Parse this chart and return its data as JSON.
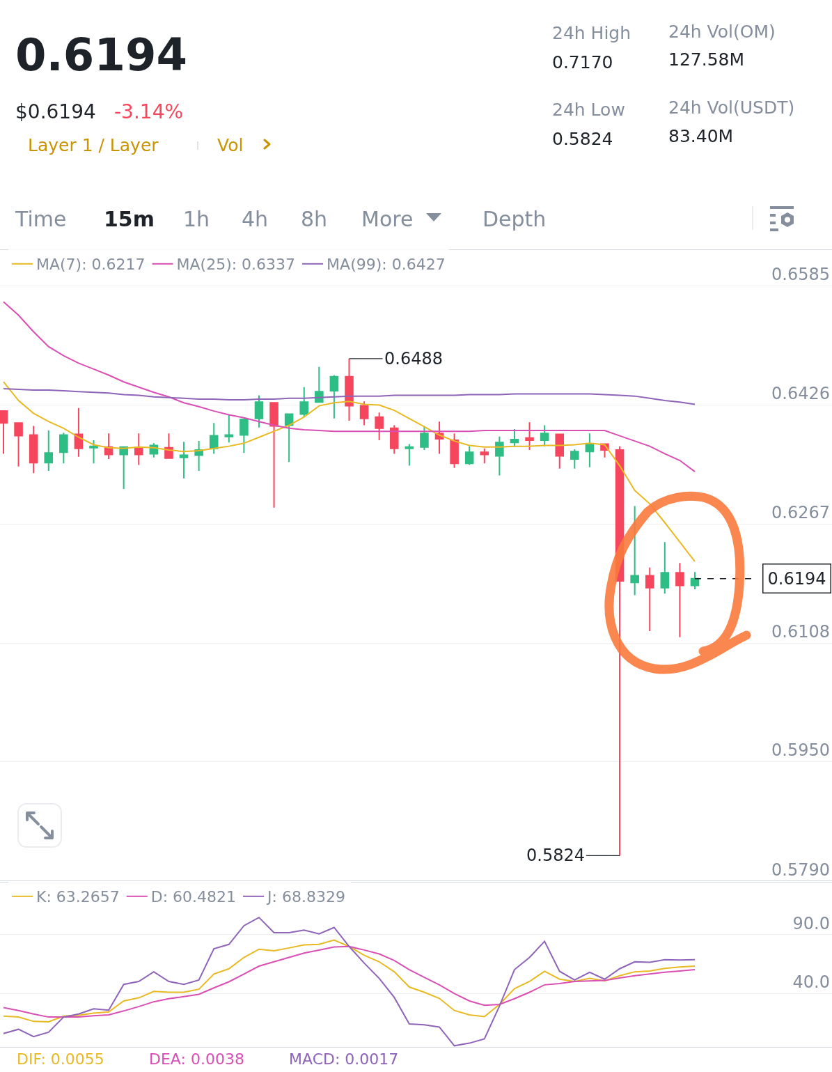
{
  "chart_data": [
    {
      "type": "candlestick",
      "categories": [
        null,
        null,
        null,
        null,
        null,
        null,
        null,
        null,
        null,
        null,
        null,
        null,
        null,
        null,
        null,
        null,
        null,
        null,
        null,
        null,
        null,
        null,
        null,
        null,
        null,
        null,
        null,
        null,
        null,
        null,
        null,
        null,
        null,
        null,
        null,
        null,
        null,
        null,
        null,
        null,
        null,
        null,
        null,
        null,
        null,
        null,
        null
      ],
      "ohlc": [
        [
          0.6418,
          0.6418,
          0.6361,
          0.6402
        ],
        [
          0.6402,
          0.6403,
          0.6344,
          0.6385
        ],
        [
          0.6386,
          0.6398,
          0.6335,
          0.6349
        ],
        [
          0.6349,
          0.6392,
          0.6338,
          0.6362
        ],
        [
          0.6363,
          0.6389,
          0.6348,
          0.6386
        ],
        [
          0.6387,
          0.6422,
          0.6357,
          0.6368
        ],
        [
          0.6369,
          0.6379,
          0.6348,
          0.6371
        ],
        [
          0.637,
          0.6388,
          0.6354,
          0.636
        ],
        [
          0.636,
          0.637,
          0.6314,
          0.637
        ],
        [
          0.6369,
          0.6388,
          0.6346,
          0.636
        ],
        [
          0.6361,
          0.6375,
          0.6356,
          0.6372
        ],
        [
          0.6369,
          0.6388,
          0.6355,
          0.6355
        ],
        [
          0.6356,
          0.6377,
          0.6328,
          0.6359
        ],
        [
          0.6359,
          0.6378,
          0.6338,
          0.6366
        ],
        [
          0.6368,
          0.6402,
          0.6361,
          0.6385
        ],
        [
          0.6384,
          0.6413,
          0.6376,
          0.6386
        ],
        [
          0.6386,
          0.6407,
          0.6362,
          0.6407
        ],
        [
          0.6408,
          0.6439,
          0.6396,
          0.643
        ],
        [
          0.6429,
          0.643,
          0.6289,
          0.6398
        ],
        [
          0.6399,
          0.6414,
          0.635,
          0.6414
        ],
        [
          0.6414,
          0.645,
          0.641,
          0.643
        ],
        [
          0.643,
          0.6477,
          0.643,
          0.6444
        ],
        [
          0.6445,
          0.6466,
          0.6408,
          0.6464
        ],
        [
          0.6464,
          0.6488,
          0.6405,
          0.6425
        ],
        [
          0.6425,
          0.6431,
          0.6399,
          0.6408
        ],
        [
          0.641,
          0.6416,
          0.6379,
          0.6395
        ],
        [
          0.6395,
          0.6399,
          0.6361,
          0.6368
        ],
        [
          0.6368,
          0.6374,
          0.6345,
          0.637
        ],
        [
          0.637,
          0.6398,
          0.6366,
          0.6388
        ],
        [
          0.6388,
          0.6404,
          0.6361,
          0.6381
        ],
        [
          0.6379,
          0.6388,
          0.6342,
          0.6348
        ],
        [
          0.6348,
          0.6371,
          0.6346,
          0.6363
        ],
        [
          0.6363,
          0.6368,
          0.6348,
          0.636
        ],
        [
          0.6358,
          0.6384,
          0.6332,
          0.6376
        ],
        [
          0.6376,
          0.6394,
          0.637,
          0.638
        ],
        [
          0.6382,
          0.6403,
          0.6366,
          0.6379
        ],
        [
          0.6379,
          0.6399,
          0.6371,
          0.6388
        ],
        [
          0.6387,
          0.6387,
          0.6341,
          0.6358
        ],
        [
          0.6354,
          0.6367,
          0.6341,
          0.6364
        ],
        [
          0.6364,
          0.6388,
          0.6343,
          0.6374
        ],
        [
          0.6374,
          0.6374,
          0.6356,
          0.6366
        ],
        [
          0.6366,
          0.6371,
          0.5824,
          0.6191
        ],
        [
          0.6189,
          0.6291,
          0.6172,
          0.6198
        ],
        [
          0.6198,
          0.6209,
          0.6124,
          0.6182
        ],
        [
          0.6182,
          0.6243,
          0.6174,
          0.6202
        ],
        [
          0.6202,
          0.6215,
          0.6116,
          0.6185
        ],
        [
          0.6185,
          0.6203,
          0.618,
          0.6194
        ]
      ],
      "colors": [
        "#f6465d",
        "#f6465d",
        "#f6465d",
        "#2ebd85",
        "#2ebd85",
        "#f6465d",
        "#2ebd85",
        "#f6465d",
        "#2ebd85",
        "#f6465d",
        "#2ebd85",
        "#f6465d",
        "#2ebd85",
        "#2ebd85",
        "#2ebd85",
        "#2ebd85",
        "#2ebd85",
        "#2ebd85",
        "#f6465d",
        "#2ebd85",
        "#2ebd85",
        "#2ebd85",
        "#2ebd85",
        "#f6465d",
        "#f6465d",
        "#f6465d",
        "#f6465d",
        "#2ebd85",
        "#2ebd85",
        "#f6465d",
        "#f6465d",
        "#2ebd85",
        "#f6465d",
        "#2ebd85",
        "#2ebd85",
        "#f6465d",
        "#2ebd85",
        "#f6465d",
        "#2ebd85",
        "#2ebd85",
        "#f6465d",
        "#f6465d",
        "#2ebd85",
        "#f6465d",
        "#2ebd85",
        "#f6465d",
        "#2ebd85"
      ],
      "series": [
        {
          "type": "line",
          "name": "MA(7): 0.6217",
          "color": "#e8b923",
          "values": [
            0.6457,
            0.6432,
            0.6415,
            0.6404,
            0.6395,
            0.6383,
            0.6373,
            0.6369,
            0.6368,
            0.637,
            0.6369,
            0.6366,
            0.6364,
            0.6365,
            0.6368,
            0.6371,
            0.6375,
            0.6383,
            0.6391,
            0.6399,
            0.641,
            0.6425,
            0.6429,
            0.6431,
            0.6427,
            0.6426,
            0.6419,
            0.6408,
            0.6397,
            0.6386,
            0.6378,
            0.6372,
            0.637,
            0.637,
            0.6371,
            0.6371,
            0.6372,
            0.6372,
            0.6373,
            0.6375,
            0.6373,
            0.6345,
            0.6312,
            0.6294,
            0.6269,
            0.6243,
            0.6217
          ]
        },
        {
          "type": "line",
          "name": "MA(25): 0.6337",
          "color": "#d94fb4",
          "values": [
            0.6564,
            0.6546,
            0.6524,
            0.6504,
            0.6492,
            0.6482,
            0.6474,
            0.6466,
            0.6457,
            0.645,
            0.6443,
            0.6437,
            0.6429,
            0.6424,
            0.6418,
            0.6413,
            0.6409,
            0.6404,
            0.6399,
            0.6395,
            0.6393,
            0.6392,
            0.6391,
            0.6391,
            0.6391,
            0.6391,
            0.6391,
            0.6391,
            0.6391,
            0.6391,
            0.6391,
            0.6391,
            0.6392,
            0.6392,
            0.6392,
            0.6392,
            0.6392,
            0.6392,
            0.6392,
            0.6392,
            0.6392,
            0.6385,
            0.6378,
            0.6371,
            0.6361,
            0.6352,
            0.6337
          ]
        },
        {
          "type": "line",
          "name": "MA(99): 0.6427",
          "color": "#8e64b8",
          "values": [
            0.6448,
            0.6447,
            0.6446,
            0.6446,
            0.6445,
            0.6444,
            0.6443,
            0.6442,
            0.644,
            0.6439,
            0.6437,
            0.6436,
            0.6435,
            0.6434,
            0.6434,
            0.6433,
            0.6433,
            0.6434,
            0.6434,
            0.6435,
            0.6435,
            0.6436,
            0.6437,
            0.6438,
            0.6438,
            0.6438,
            0.6439,
            0.6439,
            0.6439,
            0.6439,
            0.6439,
            0.644,
            0.644,
            0.644,
            0.6441,
            0.6441,
            0.6441,
            0.6441,
            0.6441,
            0.6441,
            0.644,
            0.6439,
            0.6438,
            0.6435,
            0.6432,
            0.643,
            0.6427
          ]
        }
      ],
      "ylim": [
        0.579,
        0.6634
      ],
      "yticks": [
        0.6585,
        0.6426,
        0.6267,
        0.6108,
        {
          "value": 0.595,
          "label": "0.5950"
        },
        {
          "value": 0.579,
          "label": "0.5790"
        }
      ],
      "grid": "y",
      "legend": "top left",
      "ref_lines": [
        {
          "axis": "y",
          "value": 0.6194,
          "label": "0.6194",
          "line_style": "dashed"
        }
      ],
      "annotations": [
        "0.6194",
        "$0.6194",
        "-3.14%",
        "Layer 1 / Layer",
        "Vol",
        "24h High",
        "0.7170",
        "24h Low",
        "0.5824",
        "24h Vol(OM)",
        "127.58M",
        "24h Vol(USDT)",
        "83.40M",
        "Time",
        "15m",
        "1h",
        "4h",
        "8h",
        "More",
        "Depth",
        "0.6488",
        "0.5824"
      ]
    },
    {
      "type": "line",
      "categories": [
        null,
        null,
        null,
        null,
        null,
        null,
        null,
        null,
        null,
        null,
        null,
        null,
        null,
        null,
        null,
        null,
        null,
        null,
        null,
        null,
        null,
        null,
        null,
        null,
        null,
        null,
        null,
        null,
        null,
        null,
        null,
        null,
        null,
        null,
        null,
        null,
        null,
        null,
        null,
        null,
        null,
        null,
        null,
        null,
        null,
        null,
        null
      ],
      "series": [
        {
          "name": "K: 63.2657",
          "color": "#e8b923",
          "values": [
            20.8,
            20.0,
            16.3,
            15.9,
            20.8,
            21.5,
            23.3,
            24.4,
            33.7,
            36.3,
            41.8,
            41.1,
            41.1,
            43.7,
            56.6,
            61.1,
            70.7,
            77.7,
            76.3,
            78.8,
            81.4,
            81.8,
            85.5,
            80.0,
            72.6,
            67.0,
            58.5,
            45.5,
            41.1,
            35.9,
            25.6,
            21.9,
            20.4,
            30.7,
            44.1,
            50.3,
            58.9,
            52.2,
            50.3,
            52.9,
            50.7,
            55.2,
            58.5,
            59.2,
            61.4,
            62.6,
            63.3
          ]
        },
        {
          "name": "D: 60.4821",
          "color": "#d94fb4",
          "values": [
            28.1,
            25.6,
            22.6,
            20.0,
            20.0,
            20.0,
            21.1,
            21.9,
            25.2,
            28.9,
            33.0,
            35.6,
            37.4,
            39.3,
            44.8,
            50.0,
            56.6,
            63.3,
            67.0,
            70.7,
            74.4,
            77.0,
            79.6,
            80.0,
            77.0,
            73.7,
            68.1,
            60.3,
            53.7,
            47.4,
            40.0,
            33.7,
            30.0,
            30.7,
            35.6,
            41.1,
            47.4,
            48.5,
            50.3,
            50.7,
            51.1,
            53.3,
            55.2,
            56.6,
            58.1,
            59.2,
            60.3
          ]
        },
        {
          "name": "J: 68.8329",
          "color": "#8e64b8",
          "values": [
            6.0,
            9.6,
            3.4,
            7.1,
            20.0,
            22.6,
            27.0,
            25.9,
            47.8,
            50.3,
            58.5,
            50.3,
            47.8,
            51.5,
            78.1,
            81.8,
            97.7,
            104.7,
            91.8,
            91.8,
            94.0,
            90.7,
            96.2,
            80.0,
            65.9,
            52.9,
            36.7,
            14.1,
            13.4,
            11.5,
            -4.4,
            -2.2,
            1.5,
            29.3,
            60.3,
            70.7,
            84.4,
            58.9,
            51.5,
            58.1,
            52.2,
            61.1,
            67.0,
            66.6,
            68.8,
            68.5,
            68.8
          ]
        }
      ],
      "ylim": [
        -6,
        135
      ],
      "yticks": [
        {
          "value": 90,
          "label": "90.0"
        },
        {
          "value": 40,
          "label": "40.0"
        }
      ],
      "grid": "y",
      "legend": "top left",
      "annotations": [
        "DIF: 0.0055",
        "DEA: 0.0038",
        "MACD: 0.0017"
      ]
    }
  ]
}
